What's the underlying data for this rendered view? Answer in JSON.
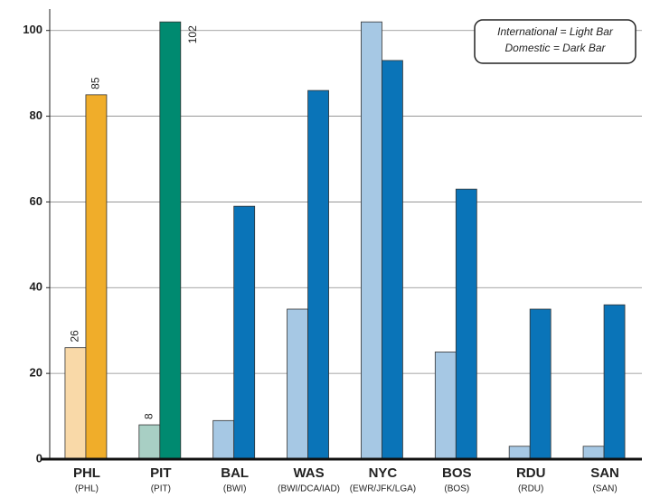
{
  "chart_data": {
    "type": "grouped-bar",
    "categories": [
      "PHL",
      "PIT",
      "BAL",
      "WAS",
      "NYC",
      "BOS",
      "RDU",
      "SAN"
    ],
    "subcategories": [
      "(PHL)",
      "(PIT)",
      "(BWI)",
      "(BWI/DCA/IAD)",
      "(EWR/JFK/LGA)",
      "(BOS)",
      "(RDU)",
      "(SAN)"
    ],
    "series": [
      {
        "name": "International = Light Bar",
        "color": "#a6c8e4",
        "colors": [
          "#f9d9a8",
          "#a8cfc4",
          "#a6c8e4",
          "#a6c8e4",
          "#a6c8e4",
          "#a6c8e4",
          "#a6c8e4",
          "#a6c8e4"
        ],
        "values": [
          26,
          8,
          9,
          35,
          102,
          25,
          3,
          3
        ]
      },
      {
        "name": "Domestic = Dark Bar",
        "color": "#0a74b8",
        "colors": [
          "#f0ad2a",
          "#008a70",
          "#0a74b8",
          "#0a74b8",
          "#0a74b8",
          "#0a74b8",
          "#0a74b8",
          "#0a74b8"
        ],
        "values": [
          85,
          102,
          59,
          86,
          93,
          63,
          35,
          36
        ]
      }
    ],
    "labeled_categories": [
      "PHL",
      "PIT"
    ],
    "ylim": [
      0,
      105
    ],
    "yticks": [
      0,
      20,
      40,
      60,
      80,
      100
    ],
    "grid": true,
    "legend": "top-right"
  }
}
